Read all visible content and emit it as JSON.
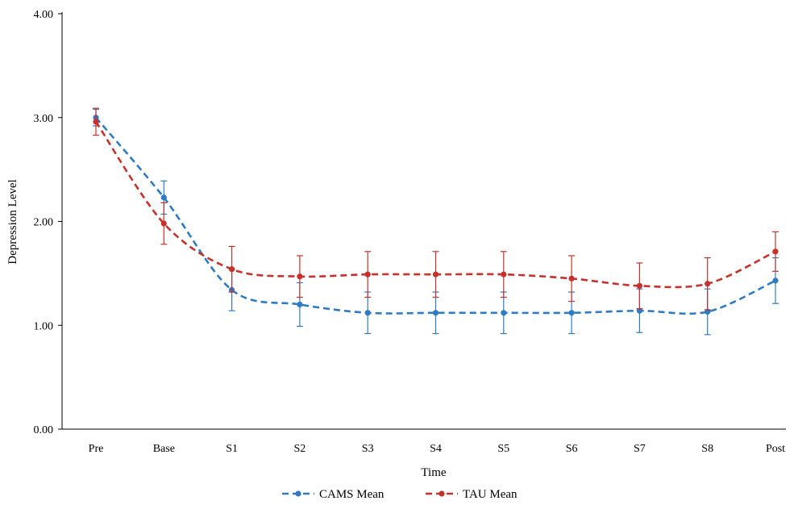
{
  "chart_data": {
    "type": "line",
    "title": "",
    "xlabel": "Time",
    "ylabel": "Depression Level",
    "categories": [
      "Pre",
      "Base",
      "S1",
      "S2",
      "S3",
      "S4",
      "S5",
      "S6",
      "S7",
      "S8",
      "Post"
    ],
    "ylim": [
      0,
      4
    ],
    "yticks": [
      "0.00",
      "1.00",
      "2.00",
      "3.00",
      "4.00"
    ],
    "grid": false,
    "legend_position": "bottom",
    "series": [
      {
        "name": "CAMS Mean",
        "color": "#2e7bc4",
        "line_style": "dashed",
        "values": [
          3.0,
          2.23,
          1.34,
          1.2,
          1.12,
          1.12,
          1.12,
          1.12,
          1.14,
          1.13,
          1.43
        ],
        "error": [
          0.08,
          0.16,
          0.2,
          0.21,
          0.2,
          0.2,
          0.2,
          0.2,
          0.21,
          0.22,
          0.22
        ]
      },
      {
        "name": "TAU Mean",
        "color": "#c8312b",
        "line_style": "dashed",
        "values": [
          2.96,
          1.98,
          1.54,
          1.47,
          1.49,
          1.49,
          1.49,
          1.45,
          1.38,
          1.4,
          1.71
        ],
        "error": [
          0.13,
          0.2,
          0.22,
          0.2,
          0.22,
          0.22,
          0.22,
          0.22,
          0.22,
          0.25,
          0.19
        ]
      }
    ]
  }
}
